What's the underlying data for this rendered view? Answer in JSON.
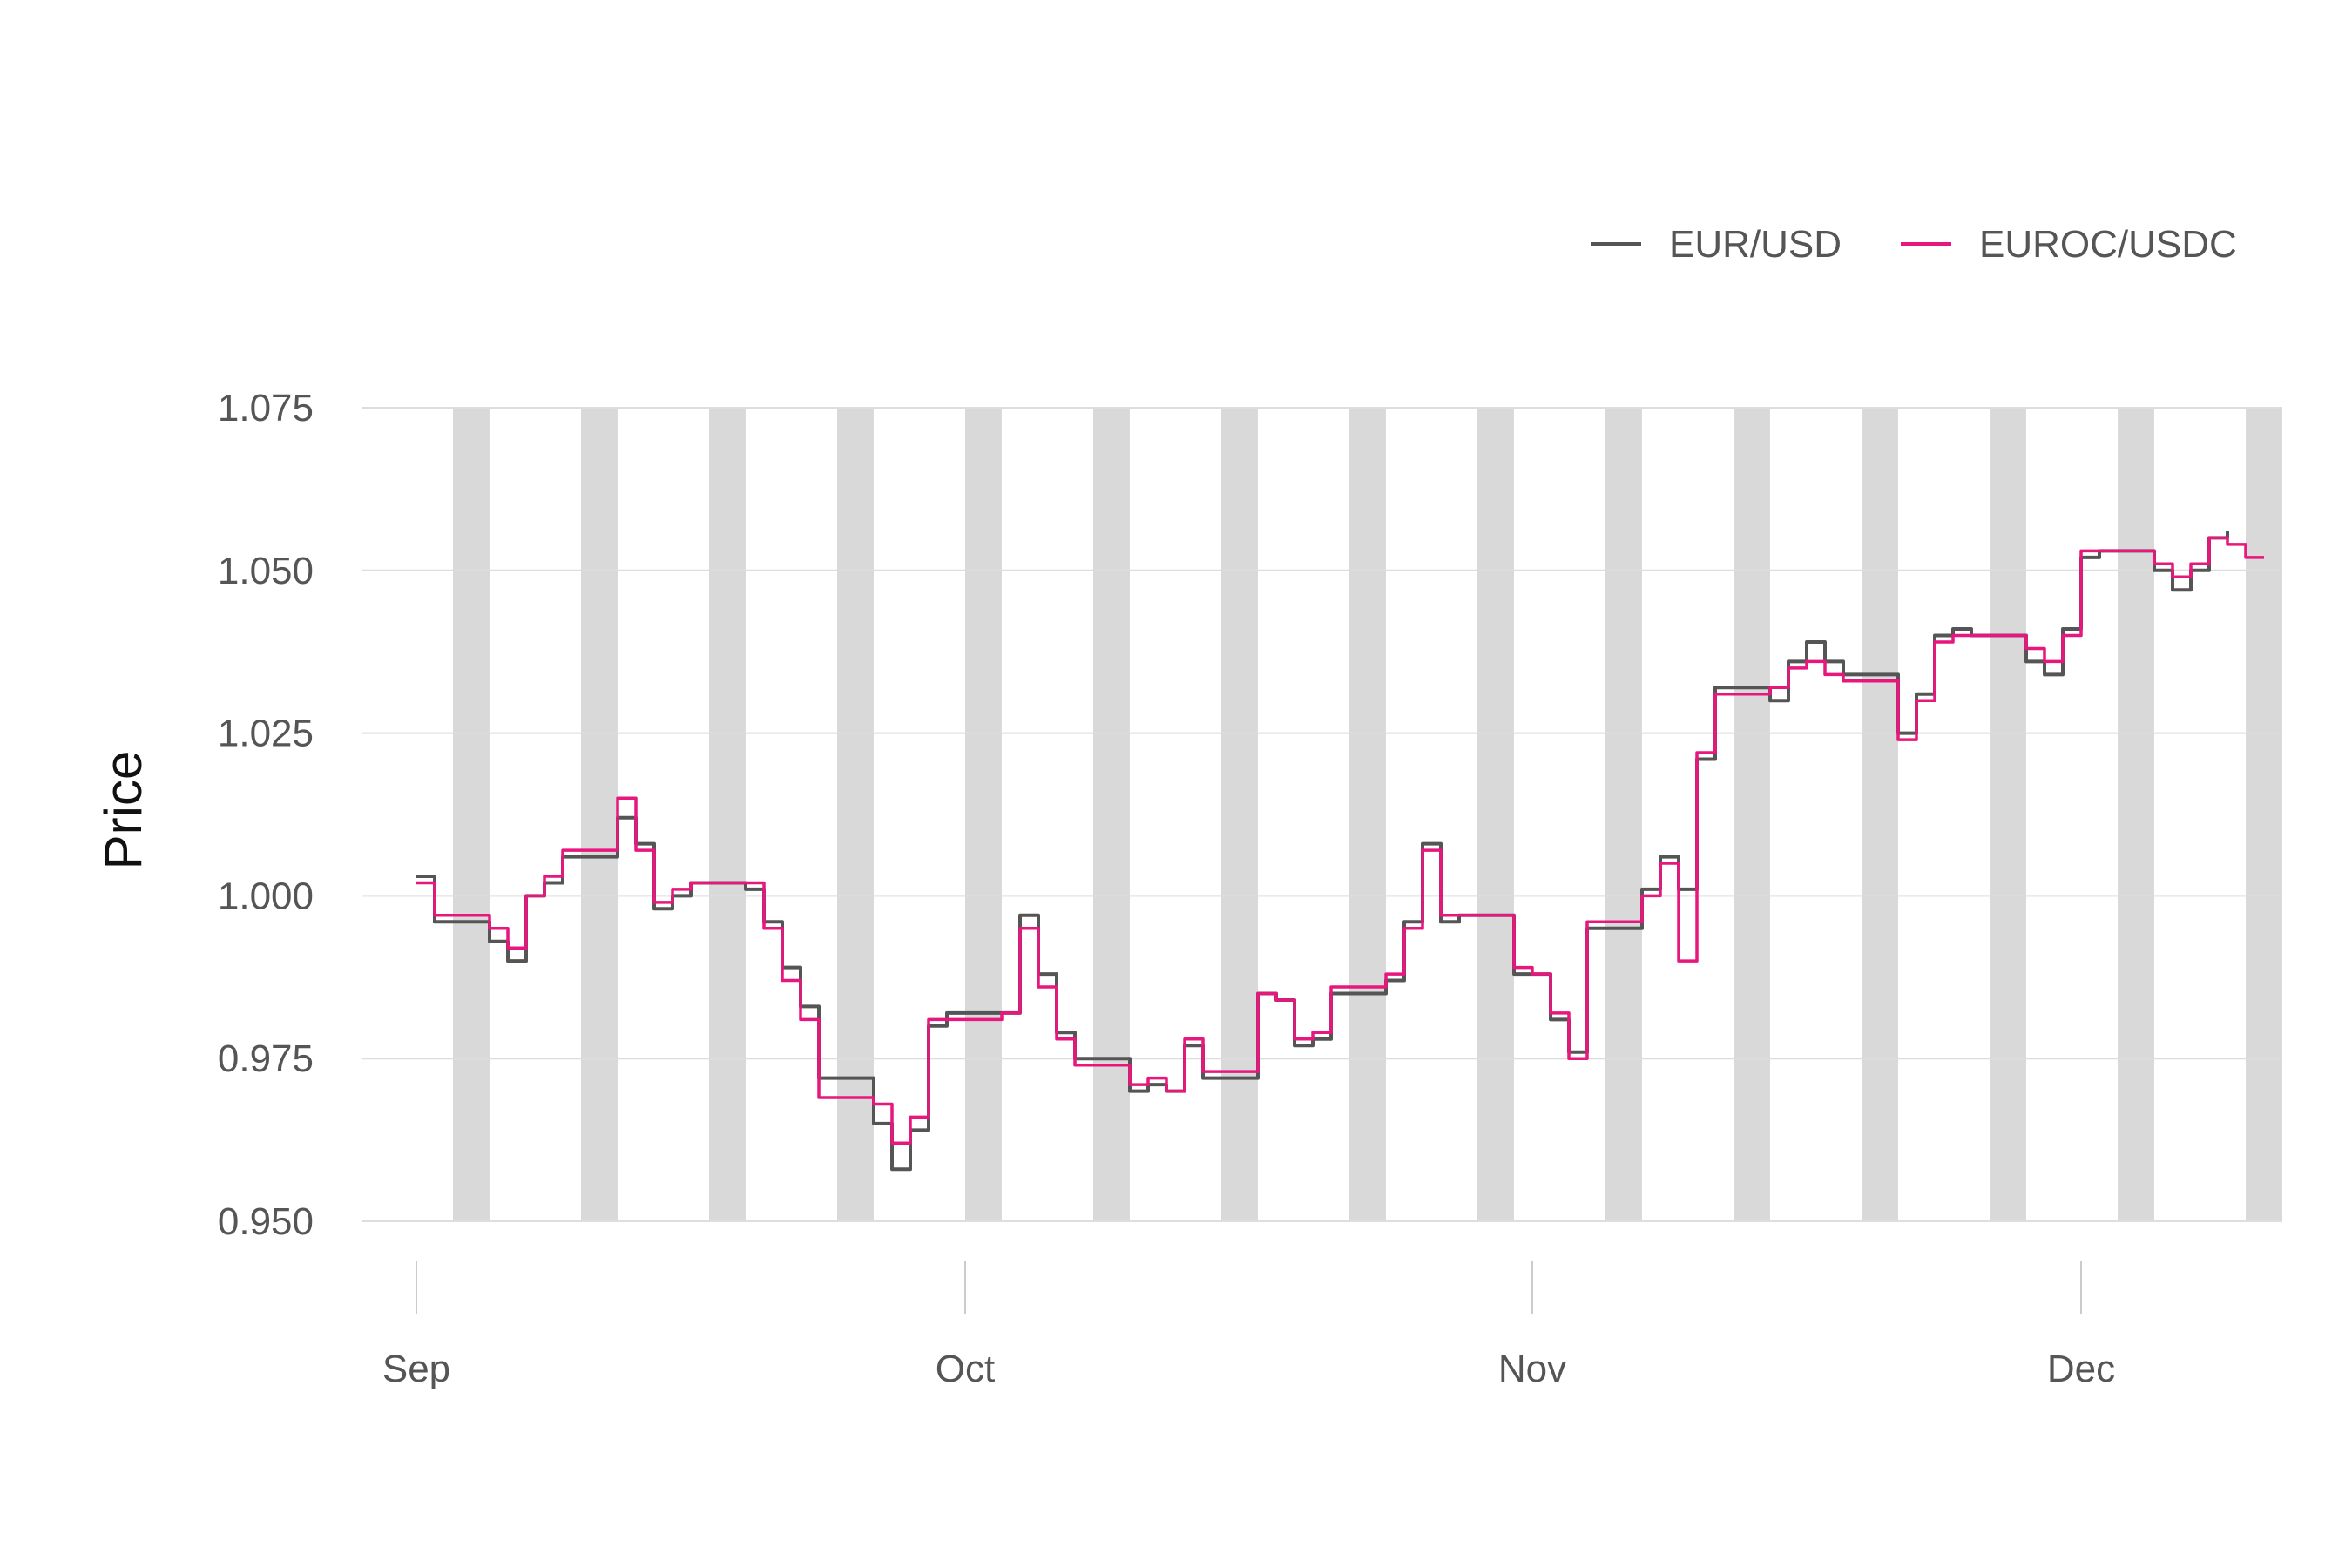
{
  "chart_data": {
    "type": "line",
    "title": "",
    "xlabel": "",
    "ylabel": "Price",
    "ylim": [
      0.95,
      1.075
    ],
    "y_ticks": [
      "0.950",
      "0.975",
      "1.000",
      "1.025",
      "1.050",
      "1.075"
    ],
    "x_range": [
      "2022-08-29",
      "2022-12-12"
    ],
    "x_ticks": [
      {
        "label": "Sep",
        "date": "2022-09-01"
      },
      {
        "label": "Oct",
        "date": "2022-10-01"
      },
      {
        "label": "Nov",
        "date": "2022-11-01"
      },
      {
        "label": "Dec",
        "date": "2022-12-01"
      }
    ],
    "grid": "horizontal",
    "legend": {
      "placement": "top-right"
    },
    "shaded_periods": "weekends",
    "shaded_color": "#d9d9d9",
    "weekend_starts": [
      "2022-09-03",
      "2022-09-10",
      "2022-09-17",
      "2022-09-24",
      "2022-10-01",
      "2022-10-08",
      "2022-10-15",
      "2022-10-22",
      "2022-10-29",
      "2022-11-05",
      "2022-11-12",
      "2022-11-19",
      "2022-11-26",
      "2022-12-03",
      "2022-12-10"
    ],
    "series": [
      {
        "name": "EUR/USD",
        "color": "#555555",
        "points": [
          [
            "2022-09-01",
            1.003
          ],
          [
            "2022-09-02",
            0.996
          ],
          [
            "2022-09-05",
            0.993
          ],
          [
            "2022-09-06",
            0.99
          ],
          [
            "2022-09-07",
            1.0
          ],
          [
            "2022-09-08",
            1.002
          ],
          [
            "2022-09-09",
            1.006
          ],
          [
            "2022-09-12",
            1.012
          ],
          [
            "2022-09-13",
            1.008
          ],
          [
            "2022-09-14",
            0.998
          ],
          [
            "2022-09-15",
            1.0
          ],
          [
            "2022-09-16",
            1.002
          ],
          [
            "2022-09-19",
            1.001
          ],
          [
            "2022-09-20",
            0.996
          ],
          [
            "2022-09-21",
            0.989
          ],
          [
            "2022-09-22",
            0.983
          ],
          [
            "2022-09-23",
            0.972
          ],
          [
            "2022-09-26",
            0.965
          ],
          [
            "2022-09-27",
            0.958
          ],
          [
            "2022-09-28",
            0.964
          ],
          [
            "2022-09-29",
            0.98
          ],
          [
            "2022-09-30",
            0.982
          ],
          [
            "2022-10-03",
            0.982
          ],
          [
            "2022-10-04",
            0.997
          ],
          [
            "2022-10-05",
            0.988
          ],
          [
            "2022-10-06",
            0.979
          ],
          [
            "2022-10-07",
            0.975
          ],
          [
            "2022-10-10",
            0.97
          ],
          [
            "2022-10-11",
            0.971
          ],
          [
            "2022-10-12",
            0.97
          ],
          [
            "2022-10-13",
            0.977
          ],
          [
            "2022-10-14",
            0.972
          ],
          [
            "2022-10-17",
            0.985
          ],
          [
            "2022-10-18",
            0.984
          ],
          [
            "2022-10-19",
            0.977
          ],
          [
            "2022-10-20",
            0.978
          ],
          [
            "2022-10-21",
            0.985
          ],
          [
            "2022-10-24",
            0.987
          ],
          [
            "2022-10-25",
            0.996
          ],
          [
            "2022-10-26",
            1.008
          ],
          [
            "2022-10-27",
            0.996
          ],
          [
            "2022-10-28",
            0.997
          ],
          [
            "2022-10-31",
            0.988
          ],
          [
            "2022-11-01",
            0.988
          ],
          [
            "2022-11-02",
            0.981
          ],
          [
            "2022-11-03",
            0.976
          ],
          [
            "2022-11-04",
            0.995
          ],
          [
            "2022-11-07",
            1.001
          ],
          [
            "2022-11-08",
            1.006
          ],
          [
            "2022-11-09",
            1.001
          ],
          [
            "2022-11-10",
            1.021
          ],
          [
            "2022-11-11",
            1.032
          ],
          [
            "2022-11-14",
            1.03
          ],
          [
            "2022-11-15",
            1.036
          ],
          [
            "2022-11-16",
            1.039
          ],
          [
            "2022-11-17",
            1.036
          ],
          [
            "2022-11-18",
            1.034
          ],
          [
            "2022-11-21",
            1.025
          ],
          [
            "2022-11-22",
            1.031
          ],
          [
            "2022-11-23",
            1.04
          ],
          [
            "2022-11-24",
            1.041
          ],
          [
            "2022-11-25",
            1.04
          ],
          [
            "2022-11-28",
            1.036
          ],
          [
            "2022-11-29",
            1.034
          ],
          [
            "2022-11-30",
            1.041
          ],
          [
            "2022-12-01",
            1.052
          ],
          [
            "2022-12-02",
            1.053
          ],
          [
            "2022-12-05",
            1.05
          ],
          [
            "2022-12-06",
            1.047
          ],
          [
            "2022-12-07",
            1.05
          ],
          [
            "2022-12-08",
            1.055
          ],
          [
            "2022-12-09",
            1.056
          ]
        ]
      },
      {
        "name": "EUROC/USDC",
        "color": "#e8177d",
        "points": [
          [
            "2022-09-01",
            1.002
          ],
          [
            "2022-09-02",
            0.997
          ],
          [
            "2022-09-05",
            0.995
          ],
          [
            "2022-09-06",
            0.992
          ],
          [
            "2022-09-07",
            1.0
          ],
          [
            "2022-09-08",
            1.003
          ],
          [
            "2022-09-09",
            1.007
          ],
          [
            "2022-09-12",
            1.015
          ],
          [
            "2022-09-13",
            1.007
          ],
          [
            "2022-09-14",
            0.999
          ],
          [
            "2022-09-15",
            1.001
          ],
          [
            "2022-09-16",
            1.002
          ],
          [
            "2022-09-19",
            1.002
          ],
          [
            "2022-09-20",
            0.995
          ],
          [
            "2022-09-21",
            0.987
          ],
          [
            "2022-09-22",
            0.981
          ],
          [
            "2022-09-23",
            0.969
          ],
          [
            "2022-09-26",
            0.968
          ],
          [
            "2022-09-27",
            0.962
          ],
          [
            "2022-09-28",
            0.966
          ],
          [
            "2022-09-29",
            0.981
          ],
          [
            "2022-09-30",
            0.981
          ],
          [
            "2022-10-03",
            0.982
          ],
          [
            "2022-10-04",
            0.995
          ],
          [
            "2022-10-05",
            0.986
          ],
          [
            "2022-10-06",
            0.978
          ],
          [
            "2022-10-07",
            0.974
          ],
          [
            "2022-10-10",
            0.971
          ],
          [
            "2022-10-11",
            0.972
          ],
          [
            "2022-10-12",
            0.97
          ],
          [
            "2022-10-13",
            0.978
          ],
          [
            "2022-10-14",
            0.973
          ],
          [
            "2022-10-17",
            0.985
          ],
          [
            "2022-10-18",
            0.984
          ],
          [
            "2022-10-19",
            0.978
          ],
          [
            "2022-10-20",
            0.979
          ],
          [
            "2022-10-21",
            0.986
          ],
          [
            "2022-10-24",
            0.988
          ],
          [
            "2022-10-25",
            0.995
          ],
          [
            "2022-10-26",
            1.007
          ],
          [
            "2022-10-27",
            0.997
          ],
          [
            "2022-10-28",
            0.997
          ],
          [
            "2022-10-31",
            0.989
          ],
          [
            "2022-11-01",
            0.988
          ],
          [
            "2022-11-02",
            0.982
          ],
          [
            "2022-11-03",
            0.975
          ],
          [
            "2022-11-04",
            0.996
          ],
          [
            "2022-11-07",
            1.0
          ],
          [
            "2022-11-08",
            1.005
          ],
          [
            "2022-11-09",
            0.99
          ],
          [
            "2022-11-10",
            1.022
          ],
          [
            "2022-11-11",
            1.031
          ],
          [
            "2022-11-14",
            1.032
          ],
          [
            "2022-11-15",
            1.035
          ],
          [
            "2022-11-16",
            1.036
          ],
          [
            "2022-11-17",
            1.034
          ],
          [
            "2022-11-18",
            1.033
          ],
          [
            "2022-11-21",
            1.024
          ],
          [
            "2022-11-22",
            1.03
          ],
          [
            "2022-11-23",
            1.039
          ],
          [
            "2022-11-24",
            1.04
          ],
          [
            "2022-11-25",
            1.04
          ],
          [
            "2022-11-28",
            1.038
          ],
          [
            "2022-11-29",
            1.036
          ],
          [
            "2022-11-30",
            1.04
          ],
          [
            "2022-12-01",
            1.053
          ],
          [
            "2022-12-02",
            1.053
          ],
          [
            "2022-12-05",
            1.051
          ],
          [
            "2022-12-06",
            1.049
          ],
          [
            "2022-12-07",
            1.051
          ],
          [
            "2022-12-08",
            1.055
          ],
          [
            "2022-12-09",
            1.054
          ],
          [
            "2022-12-10",
            1.052
          ],
          [
            "2022-12-11",
            1.052
          ]
        ]
      }
    ]
  }
}
